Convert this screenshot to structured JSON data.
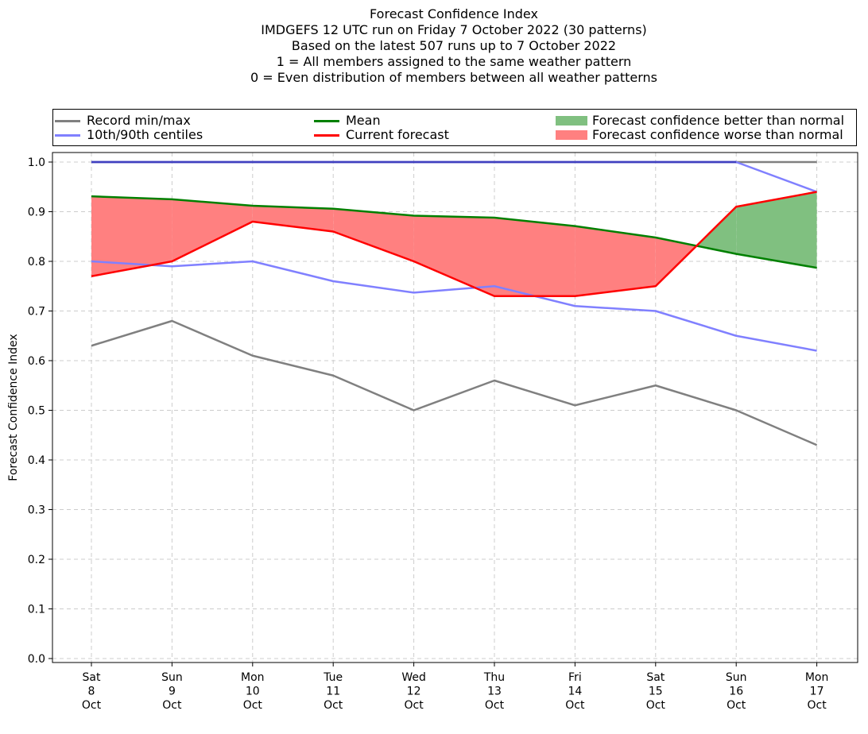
{
  "title_lines": [
    "Forecast Confidence Index",
    "IMDGEFS 12 UTC run on Friday 7 October 2022 (30 patterns)",
    "Based on the latest 507 runs up to 7 October 2022",
    "1 = All members assigned to the same weather pattern",
    "0 = Even distribution of members between all weather patterns"
  ],
  "legend": {
    "record": "Record min/max",
    "centiles": "10th/90th centiles",
    "mean": "Mean",
    "current": "Current forecast",
    "better": "Forecast confidence better than normal",
    "worse": "Forecast confidence worse than normal"
  },
  "colors": {
    "record": "#808080",
    "centiles": "#8080ff",
    "record_max_overlap": "#4040c0",
    "mean": "#008000",
    "current": "#ff0000",
    "better_fill": "#80c080",
    "worse_fill": "#ff8080"
  },
  "chart_data": {
    "type": "line",
    "title": "Forecast Confidence Index",
    "ylabel": "Forecast Confidence Index",
    "xlabel": "",
    "ylim": [
      0.0,
      1.0
    ],
    "yticks": [
      "0.0",
      "0.1",
      "0.2",
      "0.3",
      "0.4",
      "0.5",
      "0.6",
      "0.7",
      "0.8",
      "0.9",
      "1.0"
    ],
    "grid": true,
    "legend_position": "top",
    "categories": [
      [
        "Sat",
        "8",
        "Oct"
      ],
      [
        "Sun",
        "9",
        "Oct"
      ],
      [
        "Mon",
        "10",
        "Oct"
      ],
      [
        "Tue",
        "11",
        "Oct"
      ],
      [
        "Wed",
        "12",
        "Oct"
      ],
      [
        "Thu",
        "13",
        "Oct"
      ],
      [
        "Fri",
        "14",
        "Oct"
      ],
      [
        "Sat",
        "15",
        "Oct"
      ],
      [
        "Sun",
        "16",
        "Oct"
      ],
      [
        "Mon",
        "17",
        "Oct"
      ]
    ],
    "series": [
      {
        "name": "Record min/max",
        "key": "record_min",
        "values": [
          0.63,
          0.68,
          0.61,
          0.57,
          0.5,
          0.56,
          0.51,
          0.55,
          0.5,
          0.43
        ]
      },
      {
        "name": "Record min/max",
        "key": "record_max",
        "values": [
          1.0,
          1.0,
          1.0,
          1.0,
          1.0,
          1.0,
          1.0,
          1.0,
          1.0,
          1.0
        ]
      },
      {
        "name": "10th/90th centiles",
        "key": "p10",
        "values": [
          0.8,
          0.79,
          0.8,
          0.76,
          0.737,
          0.75,
          0.71,
          0.7,
          0.65,
          0.62
        ]
      },
      {
        "name": "10th/90th centiles",
        "key": "p90",
        "values": [
          1.0,
          1.0,
          1.0,
          1.0,
          1.0,
          1.0,
          1.0,
          1.0,
          1.0,
          0.94
        ]
      },
      {
        "name": "Mean",
        "key": "mean",
        "values": [
          0.931,
          0.925,
          0.912,
          0.906,
          0.892,
          0.888,
          0.871,
          0.848,
          0.815,
          0.787
        ]
      },
      {
        "name": "Current forecast",
        "key": "current",
        "values": [
          0.77,
          0.8,
          0.88,
          0.86,
          0.8,
          0.73,
          0.73,
          0.75,
          0.91,
          0.94
        ]
      }
    ]
  }
}
